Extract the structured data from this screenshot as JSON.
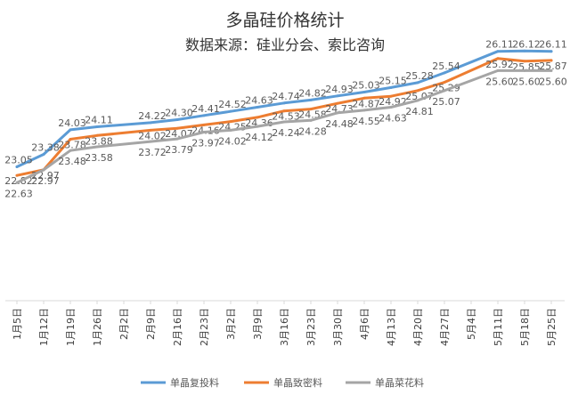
{
  "chart_data": {
    "type": "line",
    "title": "多晶硅价格统计",
    "subtitle": "数据来源：硅业分会、索比咨询",
    "categories": [
      "1月5日",
      "1月12日",
      "1月19日",
      "1月26日",
      "2月2日",
      "2月9日",
      "2月16日",
      "2月23日",
      "3月2日",
      "3月9日",
      "3月16日",
      "3月23日",
      "3月30日",
      "4月6日",
      "4月13日",
      "4月20日",
      "4月27日",
      "5月4日",
      "5月11日",
      "5月18日",
      "5月25日"
    ],
    "series": [
      {
        "name": "单晶复投料",
        "color": "#5b9bd5",
        "values": [
          23.05,
          23.38,
          24.03,
          24.11,
          null,
          24.22,
          24.3,
          24.41,
          24.52,
          24.63,
          24.74,
          24.82,
          24.93,
          25.03,
          25.15,
          25.28,
          25.54,
          null,
          26.11,
          26.12,
          26.11
        ],
        "labels": [
          "23.05",
          "23.38",
          "24.03",
          "24.11",
          "",
          "24.22",
          "24.30",
          "24.41",
          "24.52",
          "24.63",
          "24.74",
          "24.82",
          "24.93",
          "25.03",
          "25.15",
          "25.28",
          "25.54",
          "",
          "26.11",
          "26.12",
          "26.11"
        ]
      },
      {
        "name": "单晶致密料",
        "color": "#ed7d31",
        "values": [
          22.82,
          22.97,
          23.78,
          23.88,
          null,
          24.02,
          24.07,
          24.16,
          24.25,
          24.36,
          24.53,
          24.58,
          24.73,
          24.87,
          24.92,
          25.07,
          25.29,
          null,
          25.92,
          25.85,
          25.87
        ],
        "labels": [
          "22.82",
          "22.97",
          "23.78",
          "23.88",
          "",
          "24.02",
          "24.07",
          "24.16",
          "24.25",
          "24.36",
          "24.53",
          "24.58",
          "24.73",
          "24.87",
          "24.92",
          "25.07",
          "25.29",
          "",
          "25.92",
          "25.85",
          "25.87"
        ]
      },
      {
        "name": "单晶菜花料",
        "color": "#a5a5a5",
        "values": [
          22.63,
          22.97,
          23.48,
          23.58,
          null,
          23.72,
          23.79,
          23.97,
          24.02,
          24.12,
          24.24,
          24.28,
          24.48,
          24.55,
          24.63,
          24.81,
          25.07,
          null,
          25.6,
          25.6,
          25.6
        ],
        "labels": [
          "22.63",
          "22.97",
          "23.48",
          "23.58",
          "",
          "23.72",
          "23.79",
          "23.97",
          "24.02",
          "24.12",
          "24.24",
          "24.28",
          "24.48",
          "24.55",
          "24.63",
          "24.81",
          "25.07",
          "",
          "25.60",
          "25.60",
          "25.60"
        ]
      }
    ],
    "xlabel": "",
    "ylabel": "",
    "ylim": [
      19.5,
      27
    ],
    "grid": false,
    "legend": "bottom"
  }
}
